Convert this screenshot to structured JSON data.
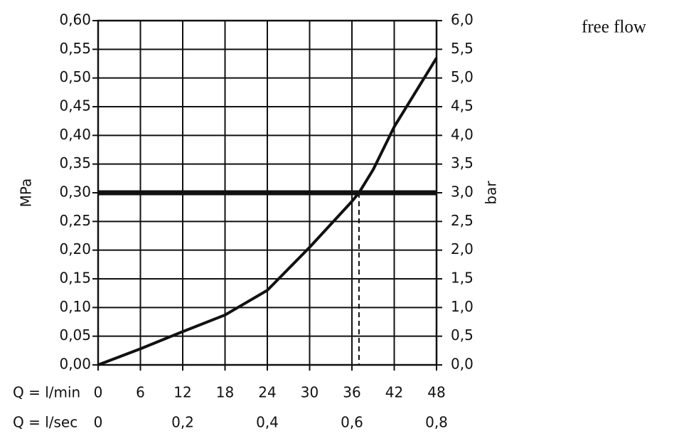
{
  "chart_data": {
    "type": "line",
    "annotation": "free flow",
    "y_label": "MPa",
    "y2_label": "bar",
    "x_label": "Q = l/min",
    "x2_label": "Q = l/sec",
    "x": [
      0,
      6,
      12,
      18,
      24,
      30,
      36,
      37,
      39,
      42,
      48
    ],
    "values": [
      0,
      0.028,
      0.058,
      0.087,
      0.13,
      0.205,
      0.285,
      0.3,
      0.34,
      0.415,
      0.535
    ],
    "color": "#111111",
    "reference": {
      "y": 0.3,
      "x": 37
    },
    "xlim": [
      0,
      48
    ],
    "xticks": [
      0,
      6,
      12,
      18,
      24,
      30,
      36,
      42,
      48
    ],
    "x2lim": [
      0,
      0.8
    ],
    "x2ticks": [
      0,
      {
        "value": 0.2,
        "label": "0,2"
      },
      {
        "value": 0.4,
        "label": "0,4"
      },
      {
        "value": 0.6,
        "label": "0,6"
      },
      {
        "value": 0.8,
        "label": "0,8"
      }
    ],
    "ylim": [
      0,
      0.6
    ],
    "yticks": [
      {
        "value": 0,
        "label": "0,00"
      },
      {
        "value": 0.05,
        "label": "0,05"
      },
      {
        "value": 0.1,
        "label": "0,10"
      },
      {
        "value": 0.15,
        "label": "0,15"
      },
      {
        "value": 0.2,
        "label": "0,20"
      },
      {
        "value": 0.25,
        "label": "0,25"
      },
      {
        "value": 0.3,
        "label": "0,30"
      },
      {
        "value": 0.35,
        "label": "0,35"
      },
      {
        "value": 0.4,
        "label": "0,40"
      },
      {
        "value": 0.45,
        "label": "0,45"
      },
      {
        "value": 0.5,
        "label": "0,50"
      },
      {
        "value": 0.55,
        "label": "0,55"
      },
      {
        "value": 0.6,
        "label": "0,60"
      }
    ],
    "y2lim": [
      0,
      6
    ],
    "y2ticks": [
      {
        "value": 0,
        "label": "0,0"
      },
      {
        "value": 0.5,
        "label": "0,5"
      },
      {
        "value": 1,
        "label": "1,0"
      },
      {
        "value": 1.5,
        "label": "1,5"
      },
      {
        "value": 2,
        "label": "2,0"
      },
      {
        "value": 2.5,
        "label": "2,5"
      },
      {
        "value": 3,
        "label": "3,0"
      },
      {
        "value": 3.5,
        "label": "3,5"
      },
      {
        "value": 4,
        "label": "4,0"
      },
      {
        "value": 4.5,
        "label": "4,5"
      },
      {
        "value": 5,
        "label": "5,0"
      },
      {
        "value": 5.5,
        "label": "5,5"
      },
      {
        "value": 6,
        "label": "6,0"
      }
    ],
    "grid": true
  }
}
